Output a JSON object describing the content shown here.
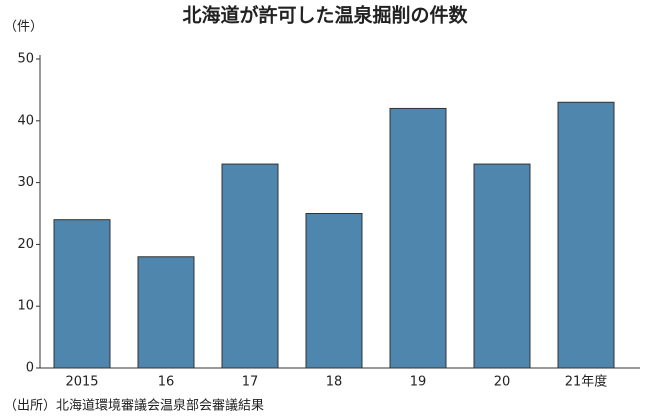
{
  "chart_data": {
    "type": "bar",
    "title": "北海道が許可した温泉掘削の件数",
    "y_label": "（件）",
    "categories": [
      "2015",
      "16",
      "17",
      "18",
      "19",
      "20",
      "21年度"
    ],
    "values": [
      24,
      18,
      33,
      25,
      42,
      33,
      43
    ],
    "color": "#4f86ad",
    "ylim": [
      0,
      50
    ],
    "yticks": [
      0,
      10,
      20,
      30,
      40,
      50
    ],
    "grid": false,
    "source": "（出所）北海道環境審議会温泉部会審議結果"
  }
}
